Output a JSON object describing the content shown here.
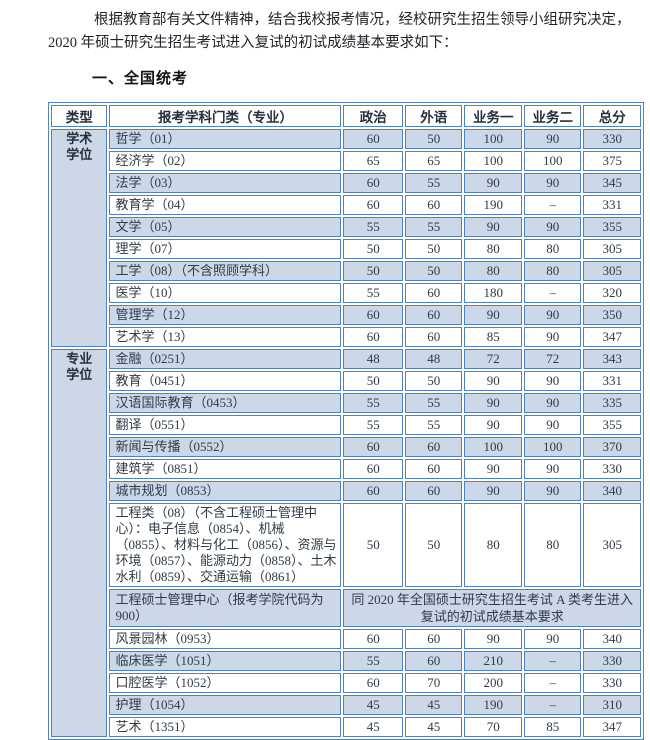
{
  "intro": {
    "line1": "根据教育部有关文件精神，结合我校报考情况，经校研究生招生领导小组研究决定，",
    "line2": "2020 年硕士研究生招生考试进入复试的初试成绩基本要求如下：",
    "section_heading": "一、全国统考"
  },
  "table": {
    "headers": [
      "类型",
      "报考学科门类（专业）",
      "政治",
      "外语",
      "业务一",
      "业务二",
      "总分"
    ],
    "groups": [
      {
        "label": "学术学位",
        "rows": [
          {
            "subject": "哲学（01）",
            "values": [
              "60",
              "50",
              "100",
              "90",
              "330"
            ]
          },
          {
            "subject": "经济学（02）",
            "values": [
              "65",
              "65",
              "100",
              "100",
              "375"
            ]
          },
          {
            "subject": "法学（03）",
            "values": [
              "60",
              "55",
              "90",
              "90",
              "345"
            ]
          },
          {
            "subject": "教育学（04）",
            "values": [
              "60",
              "60",
              "190",
              "–",
              "331"
            ]
          },
          {
            "subject": "文学（05）",
            "values": [
              "55",
              "55",
              "90",
              "90",
              "355"
            ]
          },
          {
            "subject": "理学（07）",
            "values": [
              "50",
              "50",
              "80",
              "80",
              "305"
            ]
          },
          {
            "subject": "工学（08）（不含照顾学科）",
            "values": [
              "50",
              "50",
              "80",
              "80",
              "305"
            ]
          },
          {
            "subject": "医学（10）",
            "values": [
              "55",
              "60",
              "180",
              "–",
              "320"
            ]
          },
          {
            "subject": "管理学（12）",
            "values": [
              "60",
              "60",
              "90",
              "90",
              "350"
            ]
          },
          {
            "subject": "艺术学（13）",
            "values": [
              "60",
              "60",
              "85",
              "90",
              "347"
            ]
          }
        ]
      },
      {
        "label": "专业学位",
        "rows": [
          {
            "subject": "金融（0251）",
            "values": [
              "48",
              "48",
              "72",
              "72",
              "343"
            ]
          },
          {
            "subject": "教育（0451）",
            "values": [
              "50",
              "50",
              "90",
              "90",
              "331"
            ]
          },
          {
            "subject": "汉语国际教育（0453）",
            "values": [
              "55",
              "55",
              "90",
              "90",
              "335"
            ]
          },
          {
            "subject": "翻译（0551）",
            "values": [
              "55",
              "55",
              "90",
              "90",
              "355"
            ]
          },
          {
            "subject": "新闻与传播（0552）",
            "values": [
              "60",
              "60",
              "100",
              "100",
              "370"
            ]
          },
          {
            "subject": "建筑学（0851）",
            "values": [
              "60",
              "60",
              "90",
              "90",
              "330"
            ]
          },
          {
            "subject": "城市规划（0853）",
            "values": [
              "60",
              "60",
              "90",
              "90",
              "340"
            ]
          },
          {
            "subject": "工程类（08）（不含工程硕士管理中心）：电子信息（0854）、机械（0855）、材料与化工（0856）、资源与环境（0857）、能源动力（0858）、土木水利（0859）、交通运输（0861）",
            "values": [
              "50",
              "50",
              "80",
              "80",
              "305"
            ]
          },
          {
            "subject": "工程硕士管理中心（报考学院代码为 900）",
            "note": "同 2020 年全国硕士研究生招生考试 A 类考生进入复试的初试成绩基本要求"
          },
          {
            "subject": "风景园林（0953）",
            "values": [
              "60",
              "60",
              "90",
              "90",
              "340"
            ]
          },
          {
            "subject": "临床医学（1051）",
            "values": [
              "55",
              "60",
              "210",
              "–",
              "330"
            ]
          },
          {
            "subject": "口腔医学（1052）",
            "values": [
              "60",
              "70",
              "200",
              "–",
              "330"
            ]
          },
          {
            "subject": "护理（1054）",
            "values": [
              "45",
              "45",
              "190",
              "–",
              "310"
            ]
          },
          {
            "subject": "艺术（1351）",
            "values": [
              "45",
              "45",
              "70",
              "85",
              "347"
            ]
          }
        ]
      }
    ]
  },
  "colors": {
    "table_border": "#4f81bd",
    "row_shade": "#ccd8e8",
    "table_text": "#2f3b49",
    "body_text": "#1f2328"
  }
}
